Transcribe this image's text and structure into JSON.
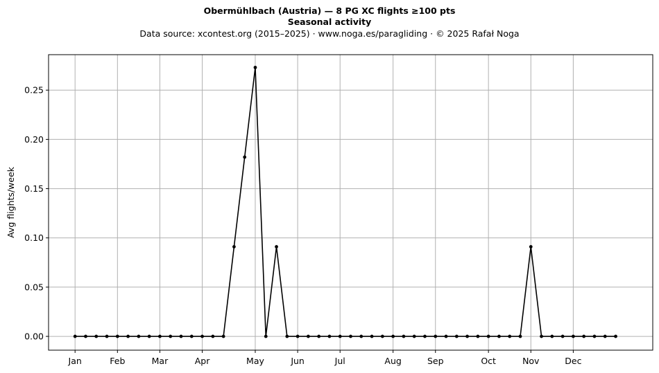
{
  "chart_data": {
    "type": "line",
    "title": "Obermühlbach (Austria)  —  8 PG XC flights ≥100 pts",
    "subtitle": "Seasonal activity",
    "source_note": "Data source: xcontest.org (2015–2025)  ·  www.noga.es/paragliding  ·  © 2025 Rafał Noga",
    "xlabel": "",
    "ylabel": "Avg flights/week",
    "x_unit": "week_of_year",
    "xlim": [
      -2.5,
      54.5
    ],
    "ylim": [
      -0.014,
      0.286
    ],
    "grid": true,
    "legend": "none",
    "line_color": "#000000",
    "grid_color": "#b0b0b0",
    "x_ticks": [
      {
        "label": "Jan",
        "x": 0
      },
      {
        "label": "Feb",
        "x": 4
      },
      {
        "label": "Mar",
        "x": 8
      },
      {
        "label": "Apr",
        "x": 12
      },
      {
        "label": "May",
        "x": 17
      },
      {
        "label": "Jun",
        "x": 21
      },
      {
        "label": "Jul",
        "x": 25
      },
      {
        "label": "Aug",
        "x": 30
      },
      {
        "label": "Sep",
        "x": 34
      },
      {
        "label": "Oct",
        "x": 39
      },
      {
        "label": "Nov",
        "x": 43
      },
      {
        "label": "Dec",
        "x": 47
      }
    ],
    "y_ticks": [
      "0.00",
      "0.05",
      "0.10",
      "0.15",
      "0.20",
      "0.25"
    ],
    "y_tick_values": [
      0.0,
      0.05,
      0.1,
      0.15,
      0.2,
      0.25
    ],
    "x": [
      0,
      1,
      2,
      3,
      4,
      5,
      6,
      7,
      8,
      9,
      10,
      11,
      12,
      13,
      14,
      15,
      16,
      17,
      18,
      19,
      20,
      21,
      22,
      23,
      24,
      25,
      26,
      27,
      28,
      29,
      30,
      31,
      32,
      33,
      34,
      35,
      36,
      37,
      38,
      39,
      40,
      41,
      42,
      43,
      44,
      45,
      46,
      47,
      48,
      49,
      50,
      51
    ],
    "y": [
      0,
      0,
      0,
      0,
      0,
      0,
      0,
      0,
      0,
      0,
      0,
      0,
      0,
      0,
      0,
      0.091,
      0.182,
      0.273,
      0,
      0.091,
      0,
      0,
      0,
      0,
      0,
      0,
      0,
      0,
      0,
      0,
      0,
      0,
      0,
      0,
      0,
      0,
      0,
      0,
      0,
      0,
      0,
      0,
      0,
      0.091,
      0,
      0,
      0,
      0,
      0,
      0,
      0,
      0
    ]
  }
}
